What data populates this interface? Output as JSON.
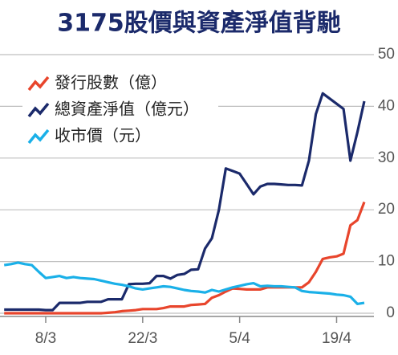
{
  "chart_data": {
    "type": "line",
    "title": "3175股價與資產淨值背馳",
    "categories": [
      null,
      null,
      null,
      null,
      null,
      null,
      "8/3",
      null,
      null,
      null,
      null,
      null,
      null,
      null,
      null,
      null,
      null,
      null,
      null,
      null,
      "22/3",
      null,
      null,
      null,
      null,
      null,
      null,
      null,
      null,
      null,
      null,
      null,
      null,
      null,
      "5/4",
      null,
      null,
      null,
      null,
      null,
      null,
      null,
      null,
      null,
      null,
      null,
      null,
      null,
      "19/4",
      null,
      null,
      null,
      null
    ],
    "series": [
      {
        "name": "發行股數（億）",
        "color": "#e8452c",
        "values": [
          0,
          0,
          0,
          0,
          0,
          0,
          0,
          0,
          0,
          0,
          0,
          0,
          0,
          0,
          0,
          0.1,
          0.2,
          0.4,
          0.5,
          0.6,
          0.8,
          0.8,
          0.8,
          1.0,
          1.3,
          1.3,
          1.3,
          1.6,
          1.7,
          1.8,
          3.0,
          3.5,
          4.2,
          4.8,
          4.7,
          4.6,
          4.6,
          4.6,
          5.0,
          5.0,
          5.0,
          5.0,
          5.0,
          5.0,
          6.0,
          8.0,
          10.5,
          10.8,
          11.0,
          11.5,
          17.0,
          18.0,
          21.5
        ]
      },
      {
        "name": "總資產淨值（億元）",
        "color": "#1b2a6b",
        "values": [
          0.7,
          0.7,
          0.7,
          0.7,
          0.7,
          0.7,
          0.6,
          0.6,
          2.0,
          2.0,
          2.0,
          2.0,
          2.2,
          2.2,
          2.2,
          2.7,
          2.7,
          2.7,
          5.6,
          5.7,
          5.7,
          5.8,
          7.2,
          7.2,
          6.7,
          7.4,
          7.6,
          8.4,
          8.5,
          12.5,
          14.5,
          20.0,
          28.0,
          27.5,
          27.0,
          25.0,
          23.0,
          24.5,
          25.0,
          25.0,
          24.9,
          24.8,
          24.8,
          24.7,
          29.5,
          38.5,
          42.5,
          41.5,
          40.5,
          39.5,
          29.5,
          35.0,
          41.0
        ]
      },
      {
        "name": "收市價（元）",
        "color": "#1ab0e8",
        "values": [
          9.3,
          9.5,
          9.8,
          9.5,
          9.3,
          8.0,
          6.8,
          7.0,
          7.2,
          6.8,
          7.0,
          6.8,
          6.7,
          6.6,
          6.3,
          6.0,
          5.7,
          5.5,
          5.2,
          4.8,
          4.6,
          4.8,
          5.0,
          5.2,
          5.1,
          4.8,
          4.5,
          4.3,
          4.2,
          4.0,
          4.5,
          4.2,
          4.6,
          5.0,
          5.3,
          5.6,
          5.8,
          5.2,
          5.3,
          5.2,
          5.2,
          5.1,
          5.0,
          4.3,
          4.1,
          4.0,
          3.9,
          3.8,
          3.6,
          3.5,
          3.2,
          1.8,
          2.0
        ]
      }
    ],
    "ylim": [
      0,
      50
    ],
    "yticks": [
      0,
      10,
      20,
      30,
      40,
      50
    ],
    "grid": true
  }
}
